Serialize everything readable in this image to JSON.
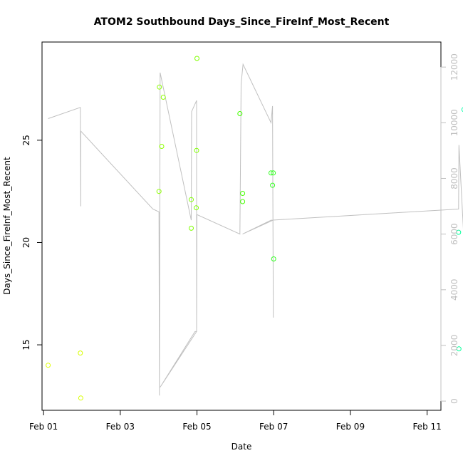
{
  "chart_data": {
    "type": "scatter",
    "title": "ATOM2 Southbound Days_Since_FireInf_Most_Recent",
    "xlabel": "Date",
    "ylabel": "Days_Since_FireInf_Most_Recent",
    "x_ticks": [
      "Feb 01",
      "Feb 03",
      "Feb 05",
      "Feb 07",
      "Feb 09",
      "Feb 11"
    ],
    "x_range_days": [
      -0.04,
      10.36
    ],
    "y_ticks": [
      15,
      20,
      25
    ],
    "ylim": [
      11.8,
      29.8
    ],
    "y2_ticks": [
      0,
      2000,
      4000,
      6000,
      8000,
      10000,
      12000
    ],
    "y2lim": [
      -330,
      12900
    ],
    "grid": false,
    "legend": "none",
    "colors": {
      "points_early": "#e0ff00",
      "points_mid": "#66ff00",
      "points_late": "#00ffaa",
      "secondary_line": "#c0c0c0",
      "axis": "#000000"
    },
    "points": [
      {
        "x": 0.12,
        "y": 14.0,
        "color": "#e0ff00"
      },
      {
        "x": 0.96,
        "y": 14.6,
        "color": "#d8ff00"
      },
      {
        "x": 0.97,
        "y": 12.4,
        "color": "#d8ff00"
      },
      {
        "x": 3.01,
        "y": 22.5,
        "color": "#8cff00"
      },
      {
        "x": 3.02,
        "y": 27.6,
        "color": "#8cff00"
      },
      {
        "x": 3.08,
        "y": 24.7,
        "color": "#8cff00"
      },
      {
        "x": 3.12,
        "y": 27.1,
        "color": "#8cff00"
      },
      {
        "x": 3.85,
        "y": 22.1,
        "color": "#80ff00"
      },
      {
        "x": 3.85,
        "y": 20.7,
        "color": "#80ff00"
      },
      {
        "x": 3.98,
        "y": 21.7,
        "color": "#80ff00"
      },
      {
        "x": 3.99,
        "y": 24.5,
        "color": "#80ff00"
      },
      {
        "x": 4.0,
        "y": 29.0,
        "color": "#80ff00"
      },
      {
        "x": 5.12,
        "y": 26.3,
        "color": "#44ff00"
      },
      {
        "x": 5.19,
        "y": 22.4,
        "color": "#44ff00"
      },
      {
        "x": 5.19,
        "y": 22.0,
        "color": "#44ff00"
      },
      {
        "x": 5.93,
        "y": 23.4,
        "color": "#33ff22"
      },
      {
        "x": 5.97,
        "y": 22.8,
        "color": "#33ff22"
      },
      {
        "x": 5.99,
        "y": 23.4,
        "color": "#33ff22"
      },
      {
        "x": 6.0,
        "y": 19.2,
        "color": "#33ff22"
      },
      {
        "x": 10.82,
        "y": 20.5,
        "color": "#00ff99"
      },
      {
        "x": 10.83,
        "y": 14.8,
        "color": "#00ff99"
      },
      {
        "x": 10.96,
        "y": 26.5,
        "color": "#00ffaa"
      }
    ],
    "secondary_line": [
      {
        "x": 0.12,
        "y2": 10150
      },
      {
        "x": 0.96,
        "y2": 10550
      },
      {
        "x": 0.97,
        "y2": 7000
      },
      {
        "x": 0.97,
        "y2": 9700
      },
      {
        "x": 2.85,
        "y2": 6900
      },
      {
        "x": 3.01,
        "y2": 6800
      },
      {
        "x": 3.02,
        "y2": 200
      },
      {
        "x": 3.04,
        "y2": 11800
      },
      {
        "x": 3.85,
        "y2": 6500
      },
      {
        "x": 3.86,
        "y2": 10400
      },
      {
        "x": 3.99,
        "y2": 10800
      },
      {
        "x": 3.99,
        "y2": 2500
      },
      {
        "x": 3.99,
        "y2": 2500
      },
      {
        "x": 3.95,
        "y2": 2500
      },
      {
        "x": 3.04,
        "y2": 500
      },
      {
        "x": 3.99,
        "y2": 2500
      },
      {
        "x": 4.0,
        "y2": 6700
      },
      {
        "x": 5.12,
        "y2": 6000
      },
      {
        "x": 5.15,
        "y2": 11400
      },
      {
        "x": 5.2,
        "y2": 12100
      },
      {
        "x": 5.93,
        "y2": 10000
      },
      {
        "x": 5.97,
        "y2": 10600
      },
      {
        "x": 5.99,
        "y2": 3000
      },
      {
        "x": 5.98,
        "y2": 6500
      },
      {
        "x": 5.19,
        "y2": 6000
      },
      {
        "x": 5.93,
        "y2": 6500
      },
      {
        "x": 10.82,
        "y2": 6900
      },
      {
        "x": 10.83,
        "y2": 9200
      },
      {
        "x": 10.96,
        "y2": 5800
      }
    ]
  }
}
